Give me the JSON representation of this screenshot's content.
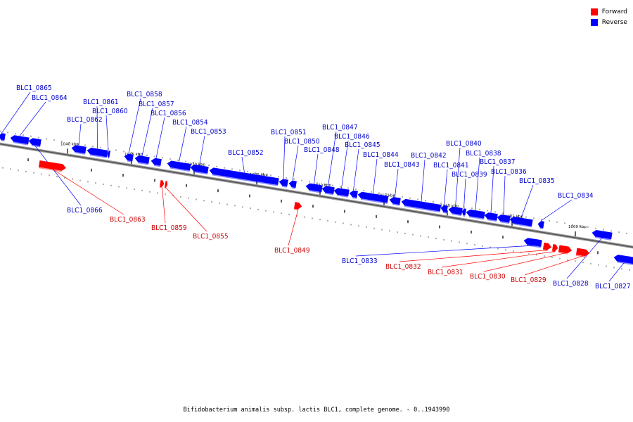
{
  "legend": {
    "forward_label": "Forward",
    "reverse_label": "Reverse",
    "forward_color": "#ff0000",
    "reverse_color": "#0000ff"
  },
  "caption": "Bifidobacterium animalis subsp. lactis BLC1, complete genome. - 0..1943990",
  "scale_labels": [
    "1040 kbp",
    "1035 kbp",
    "1030 kbp",
    "1025 kbp",
    "1020 kbp",
    "1015 kbp",
    "1010 kbp",
    "1005 kbp",
    "1000 kbp"
  ],
  "genes": [
    {
      "id": "BLC1_0865",
      "strand": "reverse"
    },
    {
      "id": "BLC1_0864",
      "strand": "reverse"
    },
    {
      "id": "BLC1_0866",
      "strand": "reverse"
    },
    {
      "id": "BLC1_0863",
      "strand": "forward"
    },
    {
      "id": "BLC1_0862",
      "strand": "reverse"
    },
    {
      "id": "BLC1_0861",
      "strand": "reverse"
    },
    {
      "id": "BLC1_0860",
      "strand": "reverse"
    },
    {
      "id": "BLC1_0858",
      "strand": "reverse"
    },
    {
      "id": "BLC1_0857",
      "strand": "reverse"
    },
    {
      "id": "BLC1_0856",
      "strand": "reverse"
    },
    {
      "id": "BLC1_0859",
      "strand": "forward"
    },
    {
      "id": "BLC1_0855",
      "strand": "forward"
    },
    {
      "id": "BLC1_0854",
      "strand": "reverse"
    },
    {
      "id": "BLC1_0853",
      "strand": "reverse"
    },
    {
      "id": "BLC1_0852",
      "strand": "reverse"
    },
    {
      "id": "BLC1_0851",
      "strand": "reverse"
    },
    {
      "id": "BLC1_0850",
      "strand": "reverse"
    },
    {
      "id": "BLC1_0849",
      "strand": "forward"
    },
    {
      "id": "BLC1_0848",
      "strand": "reverse"
    },
    {
      "id": "BLC1_0847",
      "strand": "reverse"
    },
    {
      "id": "BLC1_0846",
      "strand": "reverse"
    },
    {
      "id": "BLC1_0845",
      "strand": "reverse"
    },
    {
      "id": "BLC1_0844",
      "strand": "reverse"
    },
    {
      "id": "BLC1_0843",
      "strand": "reverse"
    },
    {
      "id": "BLC1_0842",
      "strand": "reverse"
    },
    {
      "id": "BLC1_0841",
      "strand": "reverse"
    },
    {
      "id": "BLC1_0840",
      "strand": "reverse"
    },
    {
      "id": "BLC1_0839",
      "strand": "reverse"
    },
    {
      "id": "BLC1_0838",
      "strand": "reverse"
    },
    {
      "id": "BLC1_0837",
      "strand": "reverse"
    },
    {
      "id": "BLC1_0836",
      "strand": "reverse"
    },
    {
      "id": "BLC1_0835",
      "strand": "reverse"
    },
    {
      "id": "BLC1_0834",
      "strand": "reverse"
    },
    {
      "id": "BLC1_0833",
      "strand": "reverse"
    },
    {
      "id": "BLC1_0832",
      "strand": "forward"
    },
    {
      "id": "BLC1_0831",
      "strand": "forward"
    },
    {
      "id": "BLC1_0830",
      "strand": "forward"
    },
    {
      "id": "BLC1_0829",
      "strand": "forward"
    },
    {
      "id": "BLC1_0828",
      "strand": "reverse"
    },
    {
      "id": "BLC1_0827",
      "strand": "reverse"
    }
  ]
}
